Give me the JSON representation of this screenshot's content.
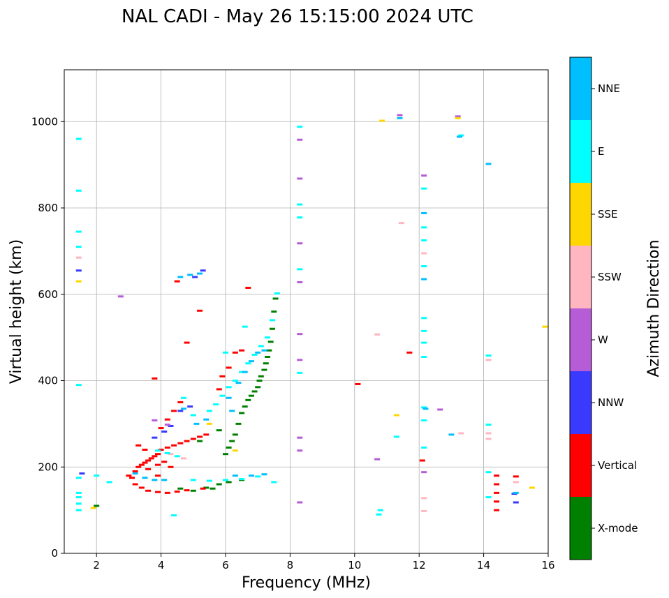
{
  "chart_data": {
    "type": "scatter",
    "title": "NAL CADI - May 26 15:15:00 2024 UTC",
    "xlabel": "Frequency (MHz)",
    "ylabel": "Virtual height (km)",
    "xlim": [
      1,
      16
    ],
    "ylim": [
      0,
      1120
    ],
    "xticks": [
      "2",
      "4",
      "6",
      "8",
      "10",
      "12",
      "14",
      "16"
    ],
    "yticks": [
      "0",
      "200",
      "400",
      "600",
      "800",
      "1000"
    ],
    "grid": true,
    "colorbar": {
      "label": "Azimuth Direction",
      "categories": [
        "X-mode",
        "Vertical",
        "NNW",
        "W",
        "SSW",
        "SSE",
        "E",
        "NNE"
      ],
      "colors": [
        "#008000",
        "#ff0000",
        "#3a3aff",
        "#b65cd6",
        "#ffb6c1",
        "#ffd700",
        "#00ffff",
        "#00bfff"
      ]
    },
    "series": [
      {
        "name": "X-mode",
        "points": [
          [
            6.0,
            230
          ],
          [
            6.1,
            245
          ],
          [
            6.2,
            260
          ],
          [
            6.3,
            275
          ],
          [
            6.4,
            300
          ],
          [
            6.5,
            325
          ],
          [
            6.6,
            340
          ],
          [
            6.7,
            355
          ],
          [
            6.8,
            365
          ],
          [
            6.9,
            375
          ],
          [
            7.0,
            385
          ],
          [
            7.05,
            400
          ],
          [
            7.1,
            410
          ],
          [
            7.2,
            425
          ],
          [
            7.25,
            440
          ],
          [
            7.3,
            455
          ],
          [
            7.35,
            470
          ],
          [
            7.4,
            490
          ],
          [
            7.45,
            520
          ],
          [
            7.5,
            560
          ],
          [
            7.55,
            590
          ],
          [
            5.0,
            145
          ],
          [
            5.4,
            152
          ],
          [
            5.8,
            160
          ],
          [
            6.1,
            165
          ],
          [
            6.5,
            170
          ],
          [
            2.0,
            110
          ],
          [
            5.2,
            260
          ],
          [
            5.8,
            285
          ],
          [
            4.6,
            150
          ],
          [
            5.6,
            150
          ]
        ]
      },
      {
        "name": "Vertical",
        "points": [
          [
            3.0,
            180
          ],
          [
            3.1,
            175
          ],
          [
            3.2,
            190
          ],
          [
            3.3,
            200
          ],
          [
            3.4,
            205
          ],
          [
            3.5,
            210
          ],
          [
            3.6,
            215
          ],
          [
            3.7,
            220
          ],
          [
            3.8,
            225
          ],
          [
            3.9,
            230
          ],
          [
            4.0,
            240
          ],
          [
            4.2,
            245
          ],
          [
            4.4,
            250
          ],
          [
            4.6,
            255
          ],
          [
            4.8,
            260
          ],
          [
            5.0,
            265
          ],
          [
            5.2,
            270
          ],
          [
            5.4,
            275
          ],
          [
            3.2,
            160
          ],
          [
            3.4,
            152
          ],
          [
            3.6,
            145
          ],
          [
            3.9,
            142
          ],
          [
            4.2,
            140
          ],
          [
            4.5,
            143
          ],
          [
            4.8,
            146
          ],
          [
            5.3,
            150
          ],
          [
            3.5,
            240
          ],
          [
            3.3,
            250
          ],
          [
            3.6,
            195
          ],
          [
            3.9,
            205
          ],
          [
            4.1,
            212
          ],
          [
            4.0,
            290
          ],
          [
            4.2,
            310
          ],
          [
            4.4,
            330
          ],
          [
            4.6,
            350
          ],
          [
            5.8,
            380
          ],
          [
            5.9,
            410
          ],
          [
            6.1,
            430
          ],
          [
            6.3,
            465
          ],
          [
            6.5,
            470
          ],
          [
            4.5,
            630
          ],
          [
            6.7,
            615
          ],
          [
            5.2,
            562
          ],
          [
            4.8,
            488
          ],
          [
            3.8,
            405
          ],
          [
            11.7,
            465
          ],
          [
            10.1,
            392
          ],
          [
            12.1,
            215
          ],
          [
            14.4,
            140
          ],
          [
            14.4,
            100
          ],
          [
            14.4,
            180
          ],
          [
            14.4,
            120
          ],
          [
            14.4,
            160
          ],
          [
            15.0,
            178
          ],
          [
            3.9,
            180
          ],
          [
            4.3,
            200
          ]
        ]
      },
      {
        "name": "NNW",
        "points": [
          [
            4.3,
            295
          ],
          [
            4.6,
            330
          ],
          [
            4.9,
            340
          ],
          [
            5.3,
            655
          ],
          [
            5.05,
            640
          ],
          [
            1.45,
            655
          ],
          [
            1.55,
            185
          ],
          [
            14.95,
            138
          ],
          [
            15.0,
            118
          ],
          [
            3.8,
            268
          ],
          [
            4.1,
            282
          ]
        ]
      },
      {
        "name": "W",
        "points": [
          [
            8.3,
            958
          ],
          [
            8.3,
            868
          ],
          [
            8.3,
            718
          ],
          [
            8.3,
            628
          ],
          [
            8.3,
            508
          ],
          [
            8.3,
            448
          ],
          [
            8.3,
            268
          ],
          [
            8.3,
            238
          ],
          [
            8.3,
            118
          ],
          [
            12.15,
            875
          ],
          [
            12.15,
            188
          ],
          [
            12.65,
            333
          ],
          [
            13.2,
            1012
          ],
          [
            11.4,
            1015
          ],
          [
            2.75,
            595
          ],
          [
            10.7,
            218
          ],
          [
            3.8,
            308
          ],
          [
            4.2,
            298
          ]
        ]
      },
      {
        "name": "SSW",
        "points": [
          [
            1.45,
            685
          ],
          [
            11.45,
            765
          ],
          [
            12.15,
            695
          ],
          [
            12.15,
            128
          ],
          [
            12.15,
            98
          ],
          [
            14.15,
            448
          ],
          [
            14.15,
            278
          ],
          [
            14.15,
            265
          ],
          [
            13.3,
            278
          ],
          [
            10.7,
            507
          ],
          [
            15.0,
            165
          ],
          [
            4.7,
            220
          ],
          [
            4.3,
            230
          ]
        ]
      },
      {
        "name": "SSE",
        "points": [
          [
            1.45,
            630
          ],
          [
            11.3,
            320
          ],
          [
            10.85,
            1002
          ],
          [
            15.5,
            152
          ],
          [
            15.9,
            525
          ],
          [
            13.2,
            1008
          ],
          [
            1.9,
            105
          ],
          [
            6.3,
            238
          ],
          [
            5.5,
            300
          ]
        ]
      },
      {
        "name": "E",
        "points": [
          [
            1.45,
            960
          ],
          [
            1.45,
            840
          ],
          [
            1.45,
            745
          ],
          [
            1.45,
            710
          ],
          [
            1.45,
            390
          ],
          [
            1.45,
            175
          ],
          [
            1.45,
            140
          ],
          [
            1.45,
            130
          ],
          [
            1.45,
            115
          ],
          [
            1.45,
            100
          ],
          [
            8.3,
            988
          ],
          [
            8.3,
            808
          ],
          [
            8.3,
            778
          ],
          [
            8.3,
            658
          ],
          [
            8.3,
            418
          ],
          [
            12.15,
            845
          ],
          [
            12.15,
            755
          ],
          [
            12.15,
            725
          ],
          [
            12.15,
            665
          ],
          [
            12.15,
            545
          ],
          [
            12.15,
            515
          ],
          [
            12.15,
            488
          ],
          [
            12.15,
            455
          ],
          [
            12.15,
            338
          ],
          [
            12.15,
            308
          ],
          [
            12.15,
            245
          ],
          [
            14.15,
            458
          ],
          [
            14.15,
            298
          ],
          [
            14.15,
            188
          ],
          [
            14.15,
            130
          ],
          [
            13.3,
            968
          ],
          [
            11.3,
            270
          ],
          [
            10.8,
            100
          ],
          [
            10.75,
            90
          ],
          [
            5.0,
            170
          ],
          [
            5.5,
            168
          ],
          [
            6.0,
            170
          ],
          [
            6.5,
            172
          ],
          [
            7.0,
            178
          ],
          [
            7.5,
            165
          ],
          [
            2.0,
            180
          ],
          [
            2.4,
            165
          ],
          [
            4.4,
            88
          ],
          [
            5.5,
            330
          ],
          [
            5.7,
            345
          ],
          [
            5.9,
            365
          ],
          [
            6.1,
            385
          ],
          [
            6.3,
            400
          ],
          [
            6.5,
            420
          ],
          [
            6.7,
            440
          ],
          [
            6.9,
            460
          ],
          [
            7.1,
            480
          ],
          [
            7.3,
            500
          ],
          [
            7.45,
            540
          ],
          [
            7.6,
            602
          ],
          [
            6.6,
            525
          ],
          [
            6.0,
            465
          ],
          [
            4.7,
            360
          ],
          [
            5.0,
            320
          ],
          [
            4.5,
            225
          ],
          [
            4.2,
            232
          ],
          [
            3.9,
            238
          ]
        ]
      },
      {
        "name": "NNE",
        "points": [
          [
            12.15,
            788
          ],
          [
            12.15,
            635
          ],
          [
            13.25,
            965
          ],
          [
            11.4,
            1008
          ],
          [
            14.15,
            902
          ],
          [
            4.6,
            640
          ],
          [
            4.9,
            645
          ],
          [
            5.2,
            648
          ],
          [
            4.7,
            335
          ],
          [
            5.1,
            300
          ],
          [
            5.4,
            310
          ],
          [
            6.2,
            330
          ],
          [
            6.1,
            360
          ],
          [
            6.4,
            395
          ],
          [
            6.6,
            420
          ],
          [
            6.8,
            445
          ],
          [
            7.0,
            465
          ],
          [
            7.2,
            470
          ],
          [
            3.2,
            185
          ],
          [
            3.5,
            175
          ],
          [
            3.8,
            170
          ],
          [
            4.1,
            170
          ],
          [
            6.3,
            180
          ],
          [
            6.8,
            180
          ],
          [
            7.2,
            183
          ],
          [
            15.0,
            140
          ],
          [
            13.0,
            275
          ],
          [
            12.2,
            335
          ]
        ]
      }
    ]
  }
}
